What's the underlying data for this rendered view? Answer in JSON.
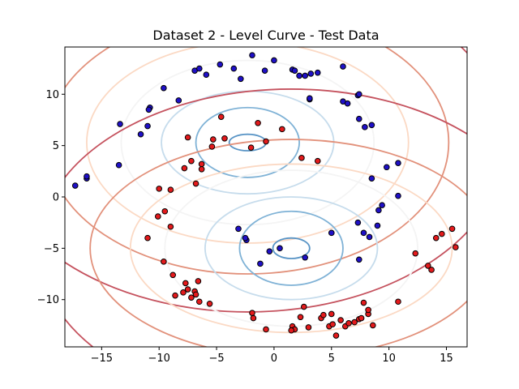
{
  "chart_data": {
    "type": "scatter",
    "title": "Dataset 2 - Level Curve - Test Data",
    "xlabel": "",
    "ylabel": "",
    "xlim": [
      -18.2,
      16.8
    ],
    "ylim": [
      -14.6,
      14.6
    ],
    "x_ticks": [
      -15,
      -10,
      -5,
      0,
      5,
      10,
      15
    ],
    "y_ticks": [
      -10,
      -5,
      0,
      5,
      10
    ],
    "grid": false,
    "legend": "none",
    "colors": {
      "class_red": "#e41a1c",
      "class_blue": "#1f10c8",
      "marker_edge": "#000000"
    },
    "contour_groups": [
      {
        "center": [
          -2.3,
          5.3
        ],
        "levels": [
          {
            "rx": 1.6,
            "ry": 0.8,
            "color": "#5a95c6"
          },
          {
            "rx": 4.5,
            "ry": 3.4,
            "color": "#7fb2d6"
          },
          {
            "rx": 7.5,
            "ry": 5.0,
            "color": "#c6dcec"
          },
          {
            "rx": 11.0,
            "ry": 8.0,
            "color": "#f4f4f4"
          },
          {
            "rx": 14.0,
            "ry": 9.8,
            "color": "#fbd9c4"
          },
          {
            "rx": 17.5,
            "ry": 12.8,
            "color": "#e2917b"
          },
          {
            "rx": 22.5,
            "ry": 16.5,
            "color": "#c5525e"
          }
        ]
      },
      {
        "center": [
          1.5,
          -5.0
        ],
        "levels": [
          {
            "rx": 1.6,
            "ry": 1.0,
            "color": "#5a95c6"
          },
          {
            "rx": 4.5,
            "ry": 3.6,
            "color": "#7fb2d6"
          },
          {
            "rx": 7.5,
            "ry": 5.0,
            "color": "#c6dcec"
          },
          {
            "rx": 11.0,
            "ry": 7.6,
            "color": "#f4f4f4"
          },
          {
            "rx": 14.0,
            "ry": 8.2,
            "color": "#fbd9c4"
          },
          {
            "rx": 17.5,
            "ry": 10.6,
            "color": "#e2917b"
          },
          {
            "rx": 22.0,
            "ry": 15.5,
            "color": "#c5525e"
          }
        ]
      }
    ],
    "series": [
      {
        "class": "red",
        "points": [
          [
            -4.6,
            7.8
          ],
          [
            -1.4,
            7.2
          ],
          [
            0.7,
            6.6
          ],
          [
            -2.0,
            4.8
          ],
          [
            -0.7,
            5.4
          ],
          [
            -5.3,
            5.6
          ],
          [
            -5.4,
            4.9
          ],
          [
            -7.5,
            5.8
          ],
          [
            -4.3,
            5.7
          ],
          [
            -7.2,
            3.5
          ],
          [
            -6.3,
            3.2
          ],
          [
            -7.8,
            2.8
          ],
          [
            -6.3,
            2.7
          ],
          [
            -6.8,
            1.3
          ],
          [
            2.4,
            3.8
          ],
          [
            3.8,
            3.5
          ],
          [
            -10.0,
            0.8
          ],
          [
            -9.0,
            0.7
          ],
          [
            -10.1,
            -1.9
          ],
          [
            -9.5,
            -1.4
          ],
          [
            -9.0,
            -2.9
          ],
          [
            -11.0,
            -4.0
          ],
          [
            -9.6,
            -6.3
          ],
          [
            -8.8,
            -7.6
          ],
          [
            -7.7,
            -8.4
          ],
          [
            -6.6,
            -8.2
          ],
          [
            -7.5,
            -9.0
          ],
          [
            -7.9,
            -9.3
          ],
          [
            -8.6,
            -9.6
          ],
          [
            -6.9,
            -9.2
          ],
          [
            -6.8,
            -9.5
          ],
          [
            -7.2,
            -9.8
          ],
          [
            -6.5,
            -10.2
          ],
          [
            -5.6,
            -10.4
          ],
          [
            2.6,
            -10.7
          ],
          [
            -1.9,
            -11.3
          ],
          [
            -1.8,
            -11.8
          ],
          [
            2.3,
            -11.7
          ],
          [
            3.0,
            -12.7
          ],
          [
            1.6,
            -12.6
          ],
          [
            1.8,
            -12.9
          ],
          [
            4.1,
            -11.8
          ],
          [
            4.3,
            -11.5
          ],
          [
            5.0,
            -11.4
          ],
          [
            4.8,
            -12.6
          ],
          [
            5.1,
            -12.4
          ],
          [
            5.8,
            -12.0
          ],
          [
            6.2,
            -12.6
          ],
          [
            6.5,
            -12.3
          ],
          [
            7.0,
            -12.2
          ],
          [
            7.4,
            -11.9
          ],
          [
            7.6,
            -11.8
          ],
          [
            8.2,
            -11.4
          ],
          [
            8.6,
            -12.5
          ],
          [
            -0.7,
            -12.9
          ],
          [
            1.5,
            -13.0
          ],
          [
            5.4,
            -13.5
          ],
          [
            8.2,
            -11.0
          ],
          [
            7.8,
            -10.3
          ],
          [
            10.8,
            -10.2
          ],
          [
            12.3,
            -5.5
          ],
          [
            13.4,
            -6.7
          ],
          [
            13.7,
            -7.1
          ],
          [
            14.1,
            -4.0
          ],
          [
            14.6,
            -3.6
          ],
          [
            15.5,
            -3.1
          ],
          [
            15.8,
            -4.9
          ]
        ]
      },
      {
        "class": "blue",
        "points": [
          [
            -1.9,
            13.8
          ],
          [
            0.0,
            13.3
          ],
          [
            1.6,
            12.4
          ],
          [
            1.8,
            12.3
          ],
          [
            2.2,
            11.8
          ],
          [
            2.7,
            11.8
          ],
          [
            3.2,
            12.0
          ],
          [
            3.8,
            12.1
          ],
          [
            6.0,
            12.7
          ],
          [
            -4.7,
            12.9
          ],
          [
            -3.5,
            12.5
          ],
          [
            -6.9,
            12.3
          ],
          [
            -6.5,
            12.5
          ],
          [
            -5.9,
            11.9
          ],
          [
            -2.9,
            11.5
          ],
          [
            -0.8,
            12.3
          ],
          [
            -9.6,
            10.6
          ],
          [
            -10.8,
            8.7
          ],
          [
            -10.9,
            8.5
          ],
          [
            -8.3,
            9.4
          ],
          [
            -13.4,
            7.1
          ],
          [
            -11.0,
            6.9
          ],
          [
            -11.6,
            6.1
          ],
          [
            -13.5,
            3.1
          ],
          [
            -17.3,
            1.1
          ],
          [
            -16.3,
            1.8
          ],
          [
            -16.3,
            2.0
          ],
          [
            3.1,
            9.5
          ],
          [
            3.1,
            9.6
          ],
          [
            6.0,
            9.3
          ],
          [
            6.4,
            9.1
          ],
          [
            7.3,
            9.9
          ],
          [
            7.4,
            10.0
          ],
          [
            7.4,
            7.6
          ],
          [
            7.9,
            6.8
          ],
          [
            8.5,
            7.0
          ],
          [
            8.5,
            1.8
          ],
          [
            9.4,
            -0.8
          ],
          [
            9.1,
            -1.3
          ],
          [
            9.8,
            2.9
          ],
          [
            10.8,
            3.3
          ],
          [
            10.8,
            0.1
          ],
          [
            7.3,
            -2.5
          ],
          [
            7.8,
            -3.5
          ],
          [
            8.3,
            -3.9
          ],
          [
            9.0,
            -2.8
          ],
          [
            7.4,
            -6.1
          ],
          [
            5.0,
            -3.5
          ],
          [
            2.7,
            -5.9
          ],
          [
            0.5,
            -5.0
          ],
          [
            -0.4,
            -5.3
          ],
          [
            -1.2,
            -6.5
          ],
          [
            -2.4,
            -4.2
          ],
          [
            -2.5,
            -4.0
          ],
          [
            -3.1,
            -3.1
          ]
        ]
      }
    ]
  }
}
